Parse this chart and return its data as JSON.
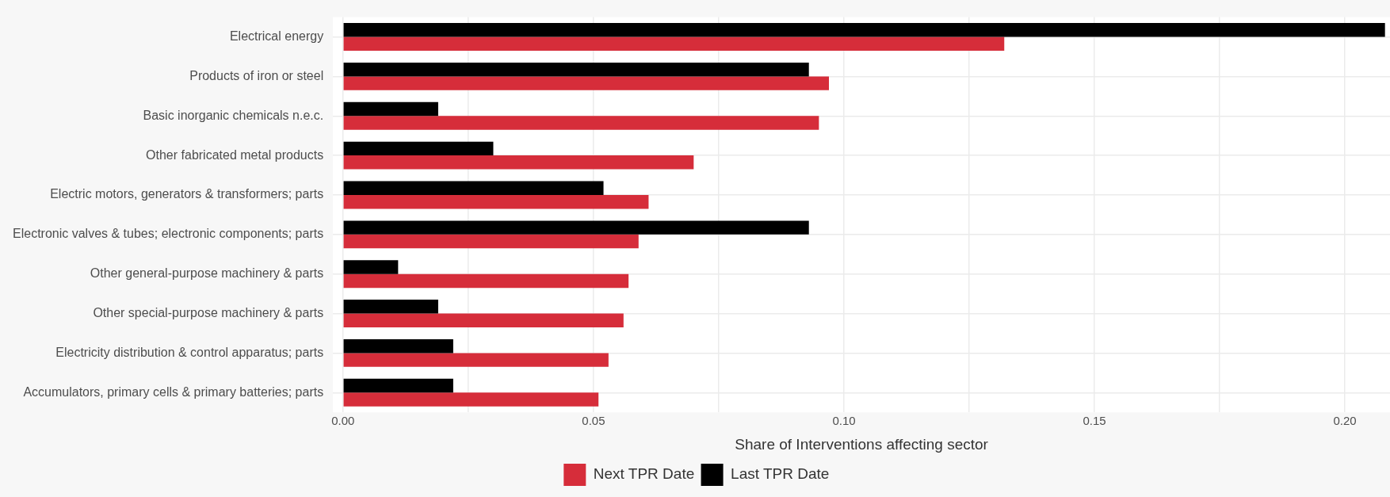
{
  "chart_data": {
    "type": "bar",
    "orientation": "horizontal",
    "xlabel": "Share of Interventions affecting sector",
    "categories": [
      "Electrical energy",
      "Products of iron or steel",
      "Basic inorganic chemicals n.e.c.",
      "Other fabricated metal products",
      "Electric motors, generators & transformers; parts",
      "Electronic valves & tubes; electronic components; parts",
      "Other general-purpose machinery & parts",
      "Other special-purpose machinery & parts",
      "Electricity distribution & control apparatus; parts",
      "Accumulators, primary cells & primary batteries; parts"
    ],
    "series": [
      {
        "name": "Last TPR Date",
        "color": "#000000",
        "values": [
          0.208,
          0.093,
          0.019,
          0.03,
          0.052,
          0.093,
          0.011,
          0.019,
          0.022,
          0.022
        ]
      },
      {
        "name": "Next TPR Date",
        "color": "#d62d3a",
        "values": [
          0.132,
          0.097,
          0.095,
          0.07,
          0.061,
          0.059,
          0.057,
          0.056,
          0.053,
          0.051
        ]
      }
    ],
    "xlim": [
      -0.002,
      0.209
    ],
    "xticks": [
      {
        "value": 0,
        "label": "0.00"
      },
      {
        "value": 0.025,
        "label": null
      },
      {
        "value": 0.05,
        "label": "0.05"
      },
      {
        "value": 0.075,
        "label": null
      },
      {
        "value": 0.1,
        "label": "0.10"
      },
      {
        "value": 0.125,
        "label": null
      },
      {
        "value": 0.15,
        "label": "0.15"
      },
      {
        "value": 0.175,
        "label": null
      },
      {
        "value": 0.2,
        "label": "0.20"
      }
    ],
    "grid": true,
    "legend": "bottom"
  }
}
